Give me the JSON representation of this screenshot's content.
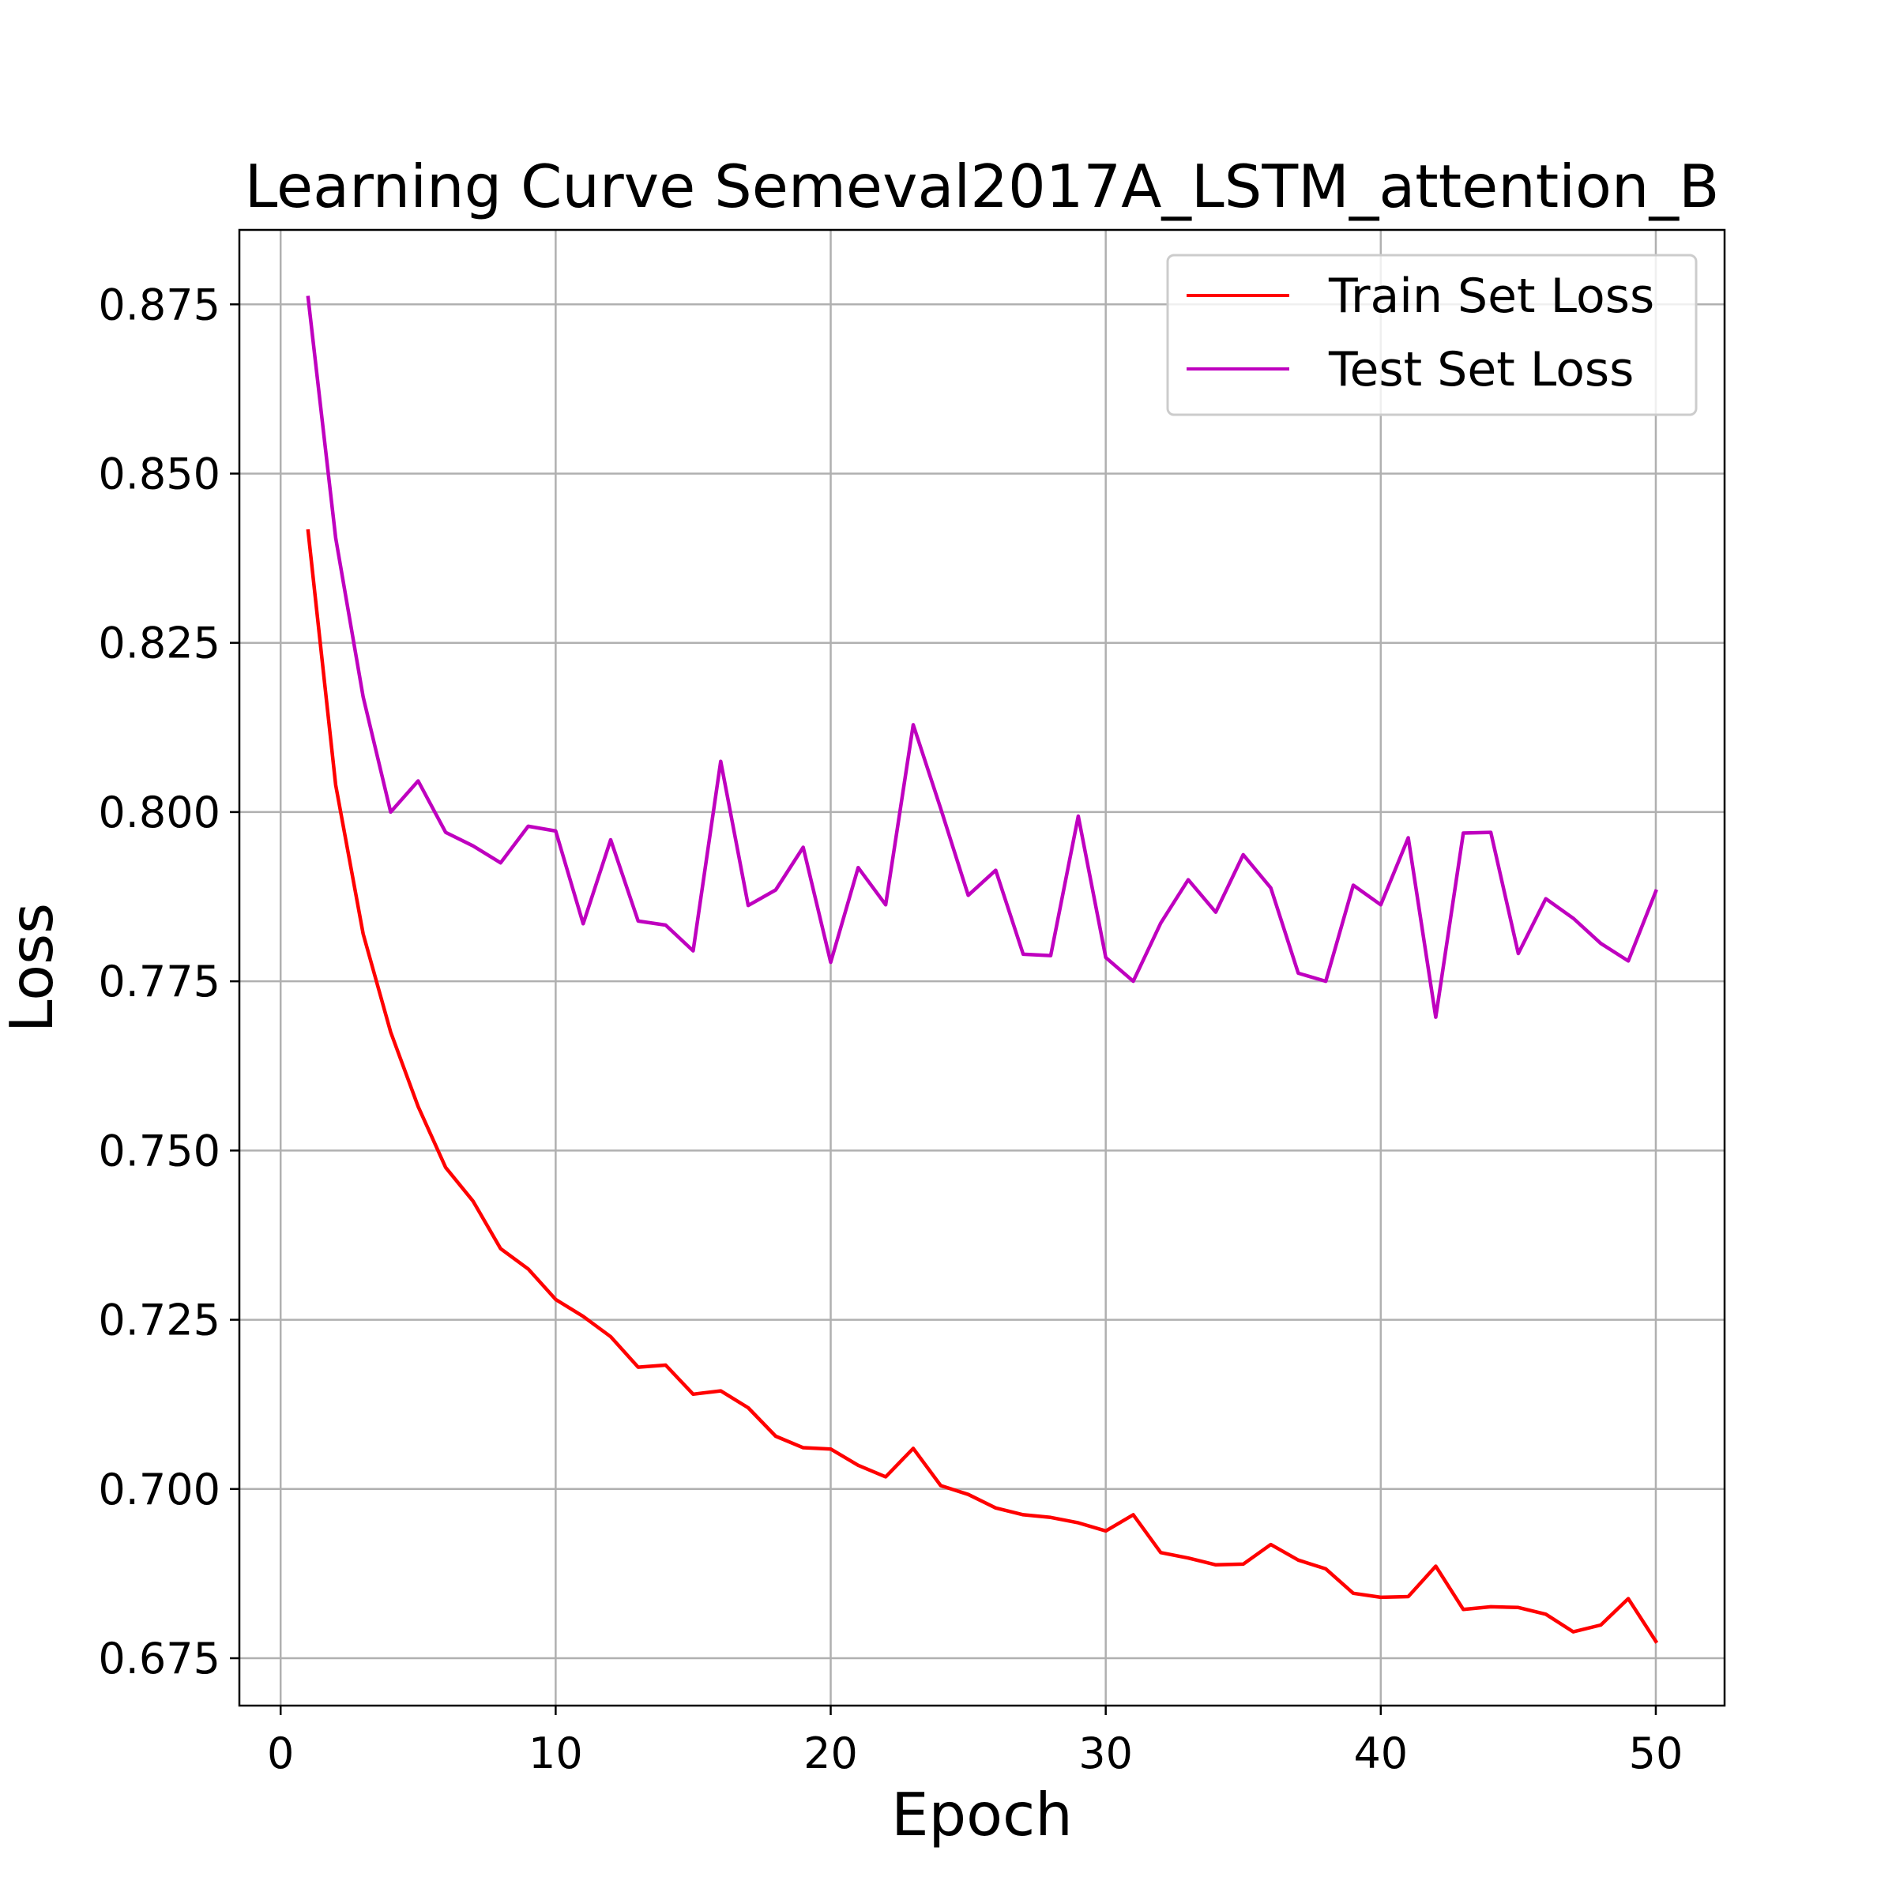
{
  "chart_data": {
    "type": "line",
    "title": "Learning Curve Semeval2017A_LSTM_attention_B",
    "xlabel": "Epoch",
    "ylabel": "Loss",
    "xlim": [
      -1.5,
      52.5
    ],
    "ylim": [
      0.668,
      0.886
    ],
    "xticks": [
      0,
      10,
      20,
      30,
      40,
      50
    ],
    "xtick_labels": [
      "0",
      "10",
      "20",
      "30",
      "40",
      "50"
    ],
    "yticks": [
      0.675,
      0.7,
      0.725,
      0.75,
      0.775,
      0.8,
      0.825,
      0.85,
      0.875
    ],
    "ytick_labels": [
      "0.675",
      "0.700",
      "0.725",
      "0.750",
      "0.775",
      "0.800",
      "0.825",
      "0.850",
      "0.875"
    ],
    "grid": true,
    "legend_position": "top-right",
    "x": [
      1,
      2,
      3,
      4,
      5,
      6,
      7,
      8,
      9,
      10,
      11,
      12,
      13,
      14,
      15,
      16,
      17,
      18,
      19,
      20,
      21,
      22,
      23,
      24,
      25,
      26,
      27,
      28,
      29,
      30,
      31,
      32,
      33,
      34,
      35,
      36,
      37,
      38,
      39,
      40,
      41,
      42,
      43,
      44,
      45,
      46,
      47,
      48,
      49,
      50
    ],
    "series": [
      {
        "name": "Train Set Loss",
        "color": "#ff0000",
        "values": [
          0.8415,
          0.804,
          0.782,
          0.7675,
          0.7565,
          0.7475,
          0.7425,
          0.7355,
          0.7325,
          0.728,
          0.7255,
          0.7225,
          0.718,
          0.7183,
          0.714,
          0.7145,
          0.712,
          0.7078,
          0.7061,
          0.7059,
          0.7035,
          0.7018,
          0.706,
          0.7005,
          0.6992,
          0.6972,
          0.6962,
          0.6958,
          0.695,
          0.6938,
          0.6962,
          0.6906,
          0.6898,
          0.6888,
          0.6889,
          0.6918,
          0.6895,
          0.6882,
          0.6846,
          0.684,
          0.6841,
          0.6886,
          0.6822,
          0.6826,
          0.6825,
          0.6815,
          0.6789,
          0.6799,
          0.6838,
          0.6775
        ]
      },
      {
        "name": "Test Set Loss",
        "color": "#bf00bf",
        "values": [
          0.876,
          0.8405,
          0.817,
          0.8,
          0.8046,
          0.797,
          0.795,
          0.7925,
          0.7979,
          0.7972,
          0.7835,
          0.7959,
          0.7839,
          0.7833,
          0.7795,
          0.8075,
          0.7862,
          0.7885,
          0.7948,
          0.7778,
          0.7918,
          0.7863,
          0.8129,
          0.8005,
          0.7877,
          0.7914,
          0.779,
          0.7788,
          0.7994,
          0.7785,
          0.775,
          0.7836,
          0.79,
          0.7852,
          0.7937,
          0.7888,
          0.7762,
          0.775,
          0.7892,
          0.7863,
          0.7962,
          0.7697,
          0.7969,
          0.797,
          0.7791,
          0.7872,
          0.7843,
          0.7806,
          0.778,
          0.7883
        ]
      }
    ]
  }
}
